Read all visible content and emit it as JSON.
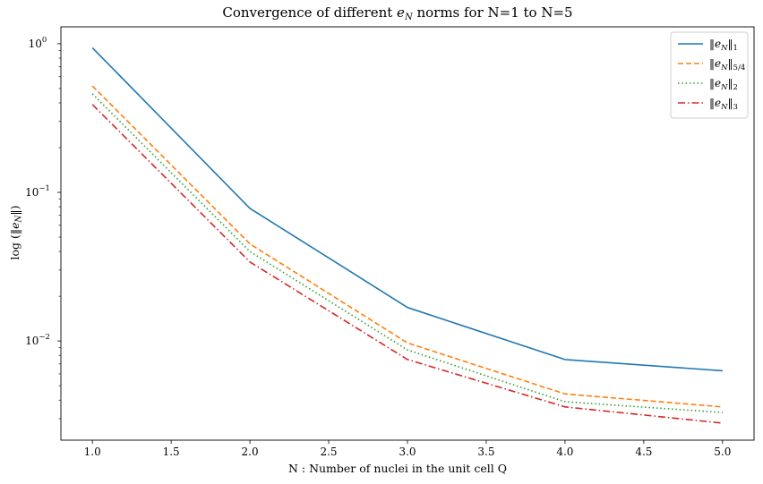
{
  "chart_data": {
    "type": "line",
    "title": "Convergence of different e_N norms for N=1 to N=5",
    "title_parts": [
      "Convergence of different ",
      "e",
      "N",
      " norms for N=1 to N=5"
    ],
    "xlabel": "N : Number of nuclei in the unit cell Q",
    "ylabel": "log (‖e_N‖)",
    "ylabel_parts": [
      "log (‖",
      "e",
      "N",
      "‖)"
    ],
    "yscale": "log",
    "xlim": [
      0.8,
      5.2
    ],
    "ylim": [
      0.00215,
      1.3
    ],
    "x": [
      1.0,
      2.0,
      3.0,
      4.0,
      5.0
    ],
    "x_tick_labels": [
      "1.0",
      "1.5",
      "2.0",
      "2.5",
      "3.0",
      "3.5",
      "4.0",
      "4.5",
      "5.0"
    ],
    "x_tick_values": [
      1.0,
      1.5,
      2.0,
      2.5,
      3.0,
      3.5,
      4.0,
      4.5,
      5.0
    ],
    "y_tick_major": [
      {
        "value": 1,
        "base": "10",
        "exp": "0"
      },
      {
        "value": 0.1,
        "base": "10",
        "exp": "−1"
      },
      {
        "value": 0.01,
        "base": "10",
        "exp": "−2"
      }
    ],
    "legend_position": "top-right",
    "series": [
      {
        "name": "‖e_N‖_1",
        "label_parts": [
          "‖",
          "e",
          "N",
          "‖",
          "1"
        ],
        "color": "#1f77b4",
        "dash": "",
        "values": [
          0.94,
          0.078,
          0.0168,
          0.0075,
          0.0063
        ]
      },
      {
        "name": "‖e_N‖_5/4",
        "label_parts": [
          "‖",
          "e",
          "N",
          "‖",
          "5/4"
        ],
        "color": "#ff7f0e",
        "dash": "6,3",
        "values": [
          0.52,
          0.045,
          0.0097,
          0.0044,
          0.0036
        ]
      },
      {
        "name": "‖e_N‖_2",
        "label_parts": [
          "‖",
          "e",
          "N",
          "‖",
          "2"
        ],
        "color": "#2ca02c",
        "dash": "1.5,2.8",
        "values": [
          0.46,
          0.04,
          0.0087,
          0.0039,
          0.0033
        ]
      },
      {
        "name": "‖e_N‖_3",
        "label_parts": [
          "‖",
          "e",
          "N",
          "‖",
          "3"
        ],
        "color": "#d62728",
        "dash": "8,3,1.5,3",
        "values": [
          0.39,
          0.034,
          0.0075,
          0.0036,
          0.0028
        ]
      }
    ]
  }
}
